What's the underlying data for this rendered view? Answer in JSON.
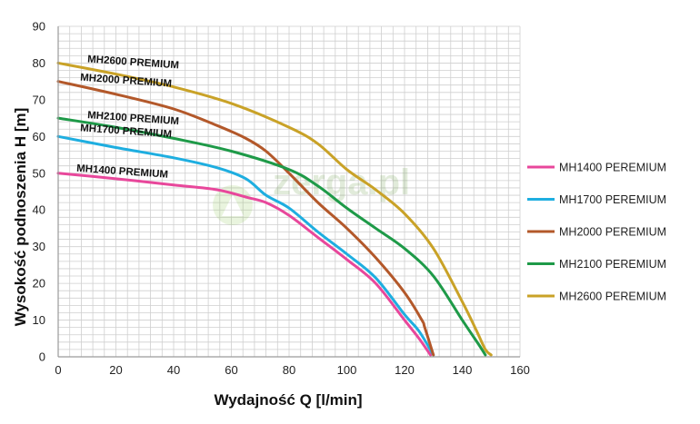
{
  "chart_data": {
    "type": "line",
    "xlabel": "Wydajność Q [l/min]",
    "ylabel": "Wysokość podnoszenia H [m]",
    "xlim": [
      0,
      160
    ],
    "ylim": [
      0,
      90
    ],
    "xticks": [
      0,
      20,
      40,
      60,
      80,
      100,
      120,
      140,
      160
    ],
    "yticks": [
      0,
      10,
      20,
      30,
      40,
      50,
      60,
      70,
      80,
      90
    ],
    "grid": true,
    "legend": "right",
    "watermark": "zerga.pl",
    "series": [
      {
        "name": "MH1400 PEREMIUM",
        "label": "MH1400 PREMIUM",
        "color": "#e8479b",
        "points": [
          [
            0,
            50
          ],
          [
            20,
            48.5
          ],
          [
            40,
            46.8
          ],
          [
            55,
            45.5
          ],
          [
            65,
            43.5
          ],
          [
            72,
            42
          ],
          [
            80,
            38.5
          ],
          [
            90,
            32.5
          ],
          [
            100,
            26.5
          ],
          [
            110,
            20
          ],
          [
            120,
            10
          ],
          [
            125,
            5
          ],
          [
            129,
            0.5
          ]
        ]
      },
      {
        "name": "MH1700 PEREMIUM",
        "label": "MH1700 PREMIUM",
        "color": "#1eaee0",
        "points": [
          [
            0,
            60
          ],
          [
            20,
            57
          ],
          [
            40,
            54.2
          ],
          [
            55,
            51.5
          ],
          [
            65,
            48.5
          ],
          [
            72,
            44
          ],
          [
            80,
            40.5
          ],
          [
            90,
            34
          ],
          [
            100,
            28
          ],
          [
            110,
            21.5
          ],
          [
            120,
            11.5
          ],
          [
            125,
            7
          ],
          [
            130,
            0.5
          ]
        ]
      },
      {
        "name": "MH2000 PEREMIUM",
        "label": "MH2000 PREMIUM",
        "color": "#b3582a",
        "points": [
          [
            0,
            75
          ],
          [
            20,
            71.5
          ],
          [
            40,
            67.5
          ],
          [
            55,
            63
          ],
          [
            65,
            59.5
          ],
          [
            72,
            56
          ],
          [
            80,
            50
          ],
          [
            90,
            42
          ],
          [
            100,
            35
          ],
          [
            110,
            27
          ],
          [
            120,
            17.5
          ],
          [
            126,
            10
          ],
          [
            127,
            8
          ],
          [
            130,
            0.5
          ]
        ]
      },
      {
        "name": "MH2100 PEREMIUM",
        "label": "MH2100 PREMIUM",
        "color": "#1e9a48",
        "points": [
          [
            0,
            65
          ],
          [
            20,
            62.5
          ],
          [
            40,
            59.5
          ],
          [
            60,
            56
          ],
          [
            80,
            51
          ],
          [
            90,
            46.5
          ],
          [
            100,
            40.5
          ],
          [
            110,
            35
          ],
          [
            120,
            29.5
          ],
          [
            130,
            22
          ],
          [
            140,
            10
          ],
          [
            146,
            3
          ],
          [
            148,
            0.5
          ]
        ]
      },
      {
        "name": "MH2600 PEREMIUM",
        "label": "MH2600 PREMIUM",
        "color": "#c9a227",
        "points": [
          [
            0,
            80
          ],
          [
            20,
            77
          ],
          [
            40,
            73.5
          ],
          [
            60,
            69
          ],
          [
            80,
            62.5
          ],
          [
            90,
            58
          ],
          [
            100,
            51
          ],
          [
            110,
            45.5
          ],
          [
            120,
            39
          ],
          [
            130,
            29.5
          ],
          [
            140,
            15
          ],
          [
            145,
            7
          ],
          [
            148,
            2
          ],
          [
            150,
            0.5
          ]
        ]
      }
    ]
  }
}
